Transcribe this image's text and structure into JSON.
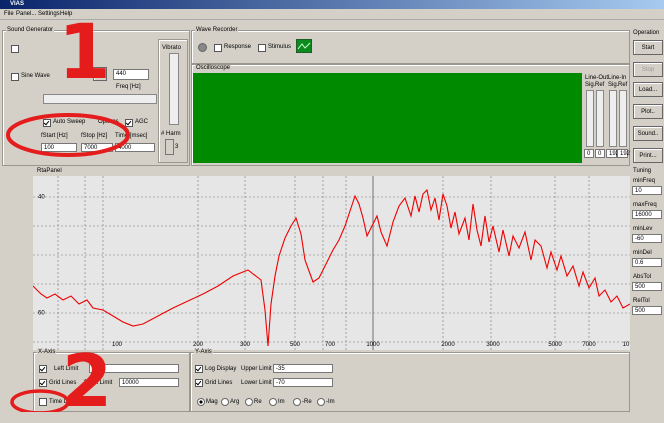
{
  "window": {
    "title": "VIAS",
    "menu": [
      "File",
      "Panel...",
      "Settings",
      "Help"
    ]
  },
  "sound_generator": {
    "title": "Sound Generator",
    "sine": "Sine Wave",
    "freq_value": "440",
    "freq_label": "Freq [Hz]",
    "auto_sweep": "Auto Sweep",
    "options": "Options",
    "agc": "AGC",
    "fstart_label": "fStart [Hz]",
    "fstop_label": "fStop [Hz]",
    "time_label": "Time [msec]",
    "fstart": "100",
    "fstop": "7000",
    "time": "4000",
    "vibrato": "Vibrato",
    "harm": "# Harm",
    "harm_value": "3"
  },
  "wave_recorder": {
    "title": "Wave Recorder",
    "response": "Response",
    "stimulus": "Stimulus"
  },
  "oscilloscope": {
    "title": "Oscilloscope",
    "line_out": "Line-Out",
    "line_in": "Line-In",
    "sig": "Sig.",
    "ref": "Ref",
    "levels": [
      "0",
      "0",
      "192",
      "192"
    ]
  },
  "operation": {
    "title": "Operation",
    "buttons": [
      "Start",
      "Stop",
      "Load...",
      "Plot..",
      "Sound..",
      "Print..."
    ]
  },
  "tuning": {
    "title": "Tuning",
    "fields": [
      {
        "label": "minFreq",
        "value": "10"
      },
      {
        "label": "maxFreq",
        "value": "16000"
      },
      {
        "label": "minLev",
        "value": "-60"
      },
      {
        "label": "minDel",
        "value": "0.6"
      },
      {
        "label": "AbsTol",
        "value": "500"
      },
      {
        "label": "RelTol",
        "value": "500"
      }
    ]
  },
  "rta_panel": {
    "title": "RtaPanel",
    "y_labels": [
      "40",
      "60"
    ],
    "x_labels": [
      "100",
      "200",
      "300",
      "500",
      "700",
      "1000",
      "2000",
      "3000",
      "5000",
      "7000",
      "10"
    ]
  },
  "x_axis": {
    "title": "X-Axis",
    "left_limit": "Left Limit",
    "left_value": "50",
    "grid_lines": "Grid Lines",
    "right_limit": "Right Limit",
    "right_value": "10000",
    "time_domain": "Time Domain"
  },
  "y_axis": {
    "title": "Y-Axis",
    "log_display": "Log Display",
    "upper_limit": "Upper Limit",
    "upper_value": "-35",
    "grid_lines": "Grid Lines",
    "lower_limit": "Lower Limit",
    "lower_value": "-70",
    "modes": [
      "Mag",
      "Arg",
      "Re",
      "Im",
      "-Re",
      "-Im"
    ]
  },
  "annotations": [
    "1",
    "2"
  ]
}
